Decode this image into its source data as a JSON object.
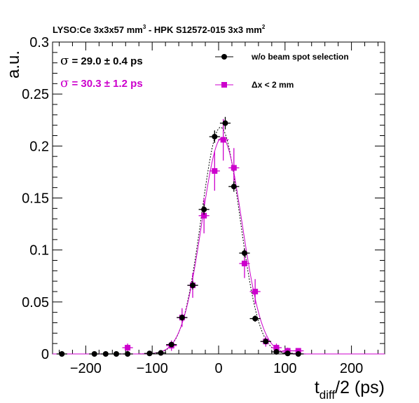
{
  "chart_data": {
    "type": "scatter",
    "title": {
      "main": "LYSO:Ce 3x3x57 mm",
      "main_sup": "3",
      "rest": " - HPK S12572-015 3x3 mm",
      "rest_sup": "2"
    },
    "xlabel": {
      "base": "t",
      "sub": "diff",
      "rest": "/2 (ps)"
    },
    "ylabel": "a.u.",
    "xlim": [
      -250,
      250
    ],
    "ylim": [
      0,
      0.3
    ],
    "x_ticks": [
      {
        "value": -200,
        "label": "−200"
      },
      {
        "value": -100,
        "label": "−100"
      },
      {
        "value": 0,
        "label": "0"
      },
      {
        "value": 100,
        "label": "100"
      },
      {
        "value": 200,
        "label": "200"
      }
    ],
    "y_ticks": [
      {
        "value": 0,
        "label": "0"
      },
      {
        "value": 0.05,
        "label": "0.05"
      },
      {
        "value": 0.1,
        "label": "0.1"
      },
      {
        "value": 0.15,
        "label": "0.15"
      },
      {
        "value": 0.2,
        "label": "0.2"
      },
      {
        "value": 0.25,
        "label": "0.25"
      },
      {
        "value": 0.3,
        "label": "0.3"
      }
    ],
    "sigma_labels": [
      {
        "symbol": "σ",
        "text": " = 29.0 ± 0.4 ps",
        "color": "#000000"
      },
      {
        "symbol": "σ",
        "text": " = 30.3 ± 1.2 ps",
        "color": "#cc00cc"
      }
    ],
    "legend_position": "top-right",
    "series": [
      {
        "name": "w/o beam spot selection",
        "color": "#000000",
        "marker": "circle",
        "fit": {
          "mean": 3,
          "sigma": 29.0,
          "amp": 0.218,
          "dash": true
        },
        "x_half_width": 8,
        "points": [
          {
            "x": -236,
            "y": 0.0,
            "yerr": 0.0
          },
          {
            "x": -187,
            "y": 0.0,
            "yerr": 0.0
          },
          {
            "x": -170,
            "y": 0.0,
            "yerr": 0.0
          },
          {
            "x": -154,
            "y": 0.0,
            "yerr": 0.0
          },
          {
            "x": -137,
            "y": 0.0,
            "yerr": 0.0
          },
          {
            "x": -104,
            "y": 0.0005,
            "yerr": 0.001
          },
          {
            "x": -87,
            "y": 0.001,
            "yerr": 0.001
          },
          {
            "x": -71,
            "y": 0.009,
            "yerr": 0.002
          },
          {
            "x": -55,
            "y": 0.035,
            "yerr": 0.003
          },
          {
            "x": -39,
            "y": 0.066,
            "yerr": 0.004
          },
          {
            "x": -22,
            "y": 0.139,
            "yerr": 0.005
          },
          {
            "x": -6,
            "y": 0.209,
            "yerr": 0.006
          },
          {
            "x": 10,
            "y": 0.222,
            "yerr": 0.006
          },
          {
            "x": 23,
            "y": 0.161,
            "yerr": 0.005
          },
          {
            "x": 39,
            "y": 0.097,
            "yerr": 0.004
          },
          {
            "x": 55,
            "y": 0.034,
            "yerr": 0.003
          },
          {
            "x": 71,
            "y": 0.012,
            "yerr": 0.002
          },
          {
            "x": 87,
            "y": 0.002,
            "yerr": 0.001
          },
          {
            "x": 104,
            "y": 0.0005,
            "yerr": 0.001
          },
          {
            "x": 120,
            "y": 0.0,
            "yerr": 0.0
          }
        ]
      },
      {
        "name": "Δx < 2 mm",
        "color": "#cc00cc",
        "marker": "square",
        "fit": {
          "mean": 5,
          "sigma": 30.3,
          "amp": 0.208,
          "dash": false
        },
        "x_half_width": 8,
        "points": [
          {
            "x": -137,
            "y": 0.006,
            "yerr": 0.004
          },
          {
            "x": -71,
            "y": 0.008,
            "yerr": 0.005
          },
          {
            "x": -55,
            "y": 0.035,
            "yerr": 0.009
          },
          {
            "x": -39,
            "y": 0.066,
            "yerr": 0.012
          },
          {
            "x": -22,
            "y": 0.133,
            "yerr": 0.017
          },
          {
            "x": -6,
            "y": 0.176,
            "yerr": 0.019
          },
          {
            "x": 7,
            "y": 0.206,
            "yerr": 0.02
          },
          {
            "x": 23,
            "y": 0.179,
            "yerr": 0.019
          },
          {
            "x": 39,
            "y": 0.087,
            "yerr": 0.014
          },
          {
            "x": 55,
            "y": 0.06,
            "yerr": 0.012
          },
          {
            "x": 71,
            "y": 0.012,
            "yerr": 0.005
          },
          {
            "x": 87,
            "y": 0.006,
            "yerr": 0.004
          },
          {
            "x": 104,
            "y": 0.003,
            "yerr": 0.003
          },
          {
            "x": 120,
            "y": 0.003,
            "yerr": 0.002
          }
        ]
      }
    ]
  }
}
